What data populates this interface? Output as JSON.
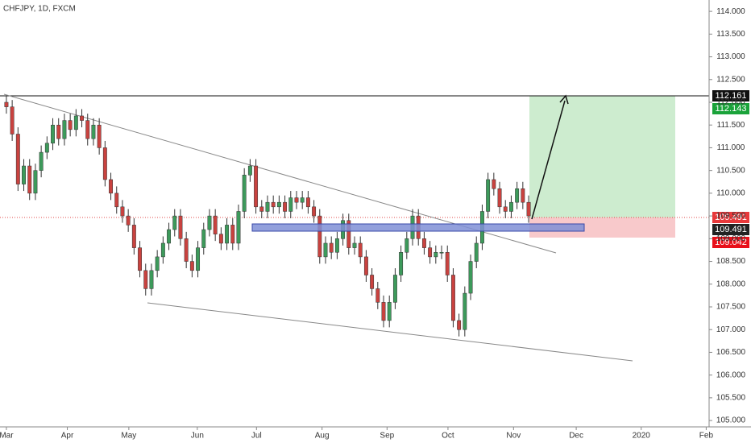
{
  "chart_data": {
    "type": "candlestick",
    "title": "CHFJPY, 1D, FXCM",
    "open": [
      112.0,
      111.9,
      111.3,
      110.2,
      110.6,
      110.0,
      110.5,
      110.9,
      111.1,
      111.5,
      111.2,
      111.6,
      111.4,
      111.7,
      111.6,
      111.2,
      111.5,
      111.0,
      110.3,
      110.0,
      109.7,
      109.5,
      109.3,
      108.8,
      108.3,
      107.9,
      108.3,
      108.6,
      108.9,
      109.2,
      109.5,
      109.0,
      108.5,
      108.3,
      108.8,
      109.2,
      109.5,
      109.1,
      108.9,
      109.3,
      108.9,
      109.6,
      110.4,
      110.6,
      109.7,
      109.6,
      109.8,
      109.7,
      109.8,
      109.6,
      109.9,
      109.8,
      109.9,
      109.7,
      109.5,
      108.6,
      108.9,
      108.7,
      109.0,
      109.4,
      108.8,
      108.9,
      108.6,
      108.2,
      107.9,
      107.6,
      107.2,
      107.6,
      108.2,
      108.7,
      109.0,
      109.5,
      109.0,
      108.8,
      108.6,
      108.7,
      108.7,
      108.2,
      107.2,
      107.0,
      107.8,
      108.5,
      108.9,
      109.6,
      110.3,
      110.1,
      109.7,
      109.6,
      109.8,
      110.1,
      109.8
    ],
    "high": [
      112.15,
      112.05,
      111.45,
      110.75,
      110.75,
      110.65,
      111.05,
      111.25,
      111.65,
      111.65,
      111.75,
      111.75,
      111.85,
      111.85,
      111.75,
      111.65,
      111.65,
      111.15,
      110.45,
      110.15,
      109.85,
      109.65,
      109.45,
      108.95,
      108.45,
      108.45,
      108.75,
      109.05,
      109.35,
      109.65,
      109.65,
      109.15,
      108.65,
      108.95,
      109.35,
      109.65,
      109.65,
      109.25,
      109.45,
      109.45,
      109.75,
      110.55,
      110.75,
      110.75,
      109.85,
      109.95,
      109.95,
      109.95,
      109.95,
      110.05,
      110.05,
      110.05,
      110.05,
      109.85,
      109.65,
      109.05,
      109.05,
      109.15,
      109.55,
      109.55,
      109.05,
      109.05,
      108.75,
      108.35,
      108.05,
      107.75,
      107.75,
      108.35,
      108.85,
      109.15,
      109.65,
      109.65,
      109.15,
      108.95,
      108.85,
      108.85,
      108.85,
      108.35,
      107.35,
      107.95,
      108.65,
      109.05,
      109.75,
      110.45,
      110.45,
      110.25,
      109.85,
      109.95,
      110.25,
      110.25,
      109.95
    ],
    "low": [
      111.75,
      111.15,
      110.05,
      110.05,
      109.85,
      109.85,
      110.35,
      110.75,
      110.95,
      111.05,
      111.05,
      111.25,
      111.25,
      111.45,
      111.05,
      111.05,
      110.85,
      110.15,
      109.85,
      109.55,
      109.35,
      109.15,
      108.65,
      108.15,
      107.75,
      107.75,
      108.15,
      108.45,
      108.75,
      109.05,
      108.85,
      108.35,
      108.15,
      108.15,
      108.65,
      109.05,
      108.95,
      108.75,
      108.75,
      108.75,
      108.75,
      109.45,
      110.25,
      109.55,
      109.45,
      109.45,
      109.55,
      109.55,
      109.45,
      109.45,
      109.65,
      109.65,
      109.55,
      109.35,
      108.45,
      108.45,
      108.55,
      108.55,
      108.85,
      108.65,
      108.65,
      108.45,
      108.05,
      107.75,
      107.45,
      107.05,
      107.05,
      107.45,
      108.05,
      108.55,
      108.85,
      108.85,
      108.65,
      108.45,
      108.45,
      108.55,
      108.05,
      107.05,
      106.85,
      106.85,
      107.65,
      108.35,
      108.75,
      109.45,
      109.95,
      109.55,
      109.45,
      109.45,
      109.65,
      109.65,
      109.35
    ],
    "close": [
      111.9,
      111.3,
      110.2,
      110.6,
      110.0,
      110.5,
      110.9,
      111.1,
      111.5,
      111.2,
      111.6,
      111.4,
      111.7,
      111.6,
      111.2,
      111.5,
      111.0,
      110.3,
      110.0,
      109.7,
      109.5,
      109.3,
      108.8,
      108.3,
      107.9,
      108.3,
      108.6,
      108.9,
      109.2,
      109.5,
      109.0,
      108.5,
      108.3,
      108.8,
      109.2,
      109.5,
      109.1,
      108.9,
      109.3,
      108.9,
      109.6,
      110.4,
      110.6,
      109.7,
      109.6,
      109.8,
      109.7,
      109.8,
      109.6,
      109.9,
      109.8,
      109.9,
      109.7,
      109.5,
      108.6,
      108.9,
      108.7,
      109.0,
      109.4,
      108.8,
      108.9,
      108.6,
      108.2,
      107.9,
      107.6,
      107.2,
      107.6,
      108.2,
      108.7,
      109.0,
      109.5,
      109.0,
      108.8,
      108.6,
      108.7,
      108.7,
      108.2,
      107.2,
      107.0,
      107.8,
      108.5,
      108.9,
      109.6,
      110.3,
      110.1,
      109.7,
      109.6,
      109.8,
      110.1,
      109.8,
      109.5
    ],
    "up_color": "#3d9a5b",
    "down_color": "#c9423f",
    "xlim": [
      -1.1,
      121.1
    ],
    "xticks": [
      {
        "value": 0,
        "label": "Mar"
      },
      {
        "value": 10.5,
        "label": "Apr"
      },
      {
        "value": 21.1,
        "label": "May"
      },
      {
        "value": 32.9,
        "label": "Jun"
      },
      {
        "value": 43.1,
        "label": "Jul"
      },
      {
        "value": 54.4,
        "label": "Aug"
      },
      {
        "value": 65.6,
        "label": "Sep"
      },
      {
        "value": 76.1,
        "label": "Oct"
      },
      {
        "value": 87.4,
        "label": "Nov"
      },
      {
        "value": 98.2,
        "label": "Dec"
      },
      {
        "value": 109.4,
        "label": "2020"
      },
      {
        "value": 120.6,
        "label": "Feb"
      }
    ],
    "ylim": [
      104.86,
      114.25
    ],
    "yticks": [
      {
        "value": 105,
        "label": "105.000"
      },
      {
        "value": 105.5,
        "label": "105.500"
      },
      {
        "value": 106,
        "label": "106.000"
      },
      {
        "value": 106.5,
        "label": "106.500"
      },
      {
        "value": 107,
        "label": "107.000"
      },
      {
        "value": 107.5,
        "label": "107.500"
      },
      {
        "value": 108,
        "label": "108.000"
      },
      {
        "value": 108.5,
        "label": "108.500"
      },
      {
        "value": 109,
        "label": "109.000"
      },
      {
        "value": 109.5,
        "label": "109.500"
      },
      {
        "value": 110,
        "label": "110.000"
      },
      {
        "value": 110.5,
        "label": "110.500"
      },
      {
        "value": 111,
        "label": "111.000"
      },
      {
        "value": 111.5,
        "label": "111.500"
      },
      {
        "value": 112,
        "label": "112.000"
      },
      {
        "value": 112.5,
        "label": "112.500"
      },
      {
        "value": 113,
        "label": "113.000"
      },
      {
        "value": 113.5,
        "label": "113.500"
      },
      {
        "value": 114,
        "label": "114.000"
      }
    ],
    "price_labels": [
      112.161,
      112.143,
      109.491,
      109.491,
      109.042
    ]
  }
}
